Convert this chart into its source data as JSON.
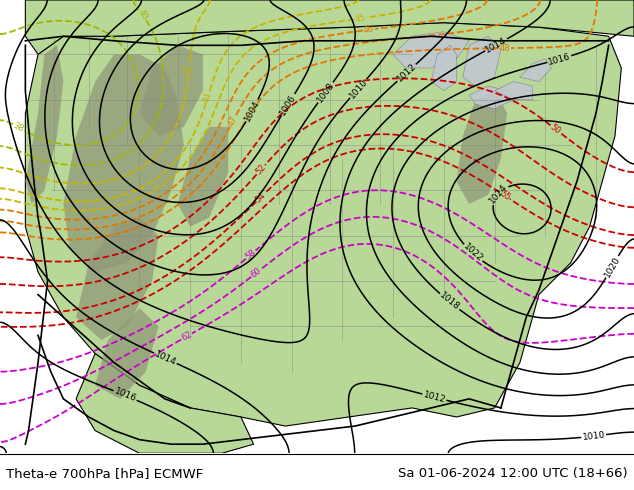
{
  "title_left": "Theta-e 700hPa [hPa] ECMWF",
  "title_right": "Sa 01-06-2024 12:00 UTC (18+66)",
  "bg_color": "#ffffff",
  "figsize": [
    6.34,
    4.9
  ],
  "dpi": 100,
  "land_green": "#b8d898",
  "land_green2": "#a8cc88",
  "mountain_gray": "#909878",
  "water_white": "#f0f0f0",
  "ocean_color": "#e8e8e8",
  "gray_border": "#888888",
  "black": "#000000",
  "green_theta": "#60b000",
  "yellow_theta": "#c8b400",
  "orange_theta": "#e07800",
  "red_theta": "#cc0000",
  "darkred_theta": "#aa0000",
  "magenta_theta": "#cc00cc",
  "pressure_isobar_lw": 1.1,
  "theta_lw": 1.3
}
